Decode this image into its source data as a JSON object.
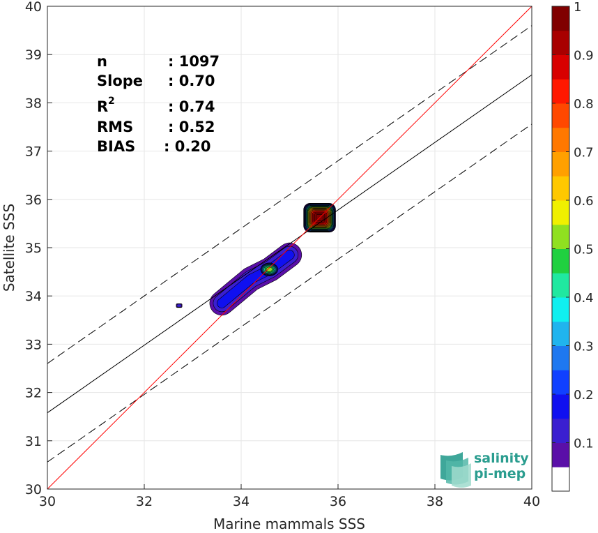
{
  "chart_data": {
    "type": "contour-scatter",
    "xlabel": "Marine mammals SSS",
    "ylabel": "Satellite SSS",
    "xlim": [
      30,
      40
    ],
    "ylim": [
      30,
      40
    ],
    "xticks": [
      "30",
      "32",
      "34",
      "36",
      "38",
      "40"
    ],
    "yticks": [
      "30",
      "31",
      "32",
      "33",
      "34",
      "35",
      "36",
      "37",
      "38",
      "39",
      "40"
    ],
    "grid": true,
    "stats": {
      "n_label": "n",
      "n_value": ": 1097",
      "slope_label": "Slope",
      "slope_value": ": 0.70",
      "r2_label": "R",
      "r2_sup": "2",
      "r2_value": ": 0.74",
      "rms_label": "RMS",
      "rms_value": ": 0.52",
      "bias_label": "BIAS",
      "bias_value": ": 0.20"
    },
    "identity_line": {
      "x": [
        30,
        40
      ],
      "y": [
        30,
        40
      ],
      "color": "#ff0000"
    },
    "fit_line": {
      "x": [
        30,
        40
      ],
      "y": [
        31.58,
        38.58
      ],
      "color": "#000000"
    },
    "upper_bound": {
      "x": [
        30,
        40
      ],
      "y": [
        32.6,
        39.6
      ],
      "style": "dashed"
    },
    "lower_bound": {
      "x": [
        30,
        40
      ],
      "y": [
        30.56,
        37.56
      ],
      "style": "dashed"
    },
    "density_clusters": [
      {
        "name_hidden": "",
        "center": [
          35.62,
          35.62
        ],
        "spread": [
          0.33,
          0.3
        ],
        "peak": 1.0
      },
      {
        "name_hidden": "",
        "center": [
          34.58,
          34.55
        ],
        "spread": [
          0.2,
          0.15
        ],
        "peak": 0.5
      },
      {
        "name_hidden": "",
        "center": [
          32.72,
          33.8
        ],
        "spread": [
          0.06,
          0.04
        ],
        "peak": 0.12
      }
    ],
    "elongated_cluster": {
      "points": [
        [
          33.6,
          33.85
        ],
        [
          33.9,
          34.1
        ],
        [
          34.2,
          34.35
        ],
        [
          34.6,
          34.55
        ],
        [
          35.0,
          34.85
        ]
      ],
      "peak": 0.22
    },
    "colorbar": {
      "min": 0,
      "max": 1,
      "ticks": [
        "0.1",
        "0.2",
        "0.3",
        "0.4",
        "0.5",
        "0.6",
        "0.7",
        "0.8",
        "0.9",
        "1"
      ],
      "colors": [
        "#ffffff",
        "#5a0fa8",
        "#3a1fd0",
        "#1010f0",
        "#1040ff",
        "#1e78f0",
        "#20b4ee",
        "#10f0f0",
        "#20e8a0",
        "#20d040",
        "#90e020",
        "#f0f000",
        "#ffc800",
        "#ffa000",
        "#ff7800",
        "#ff4800",
        "#ff1800",
        "#d80000",
        "#a80000",
        "#800000"
      ]
    }
  },
  "logo": {
    "line1": "salinity",
    "line2": "pi-mep",
    "icon": "salinity-waves-icon"
  }
}
